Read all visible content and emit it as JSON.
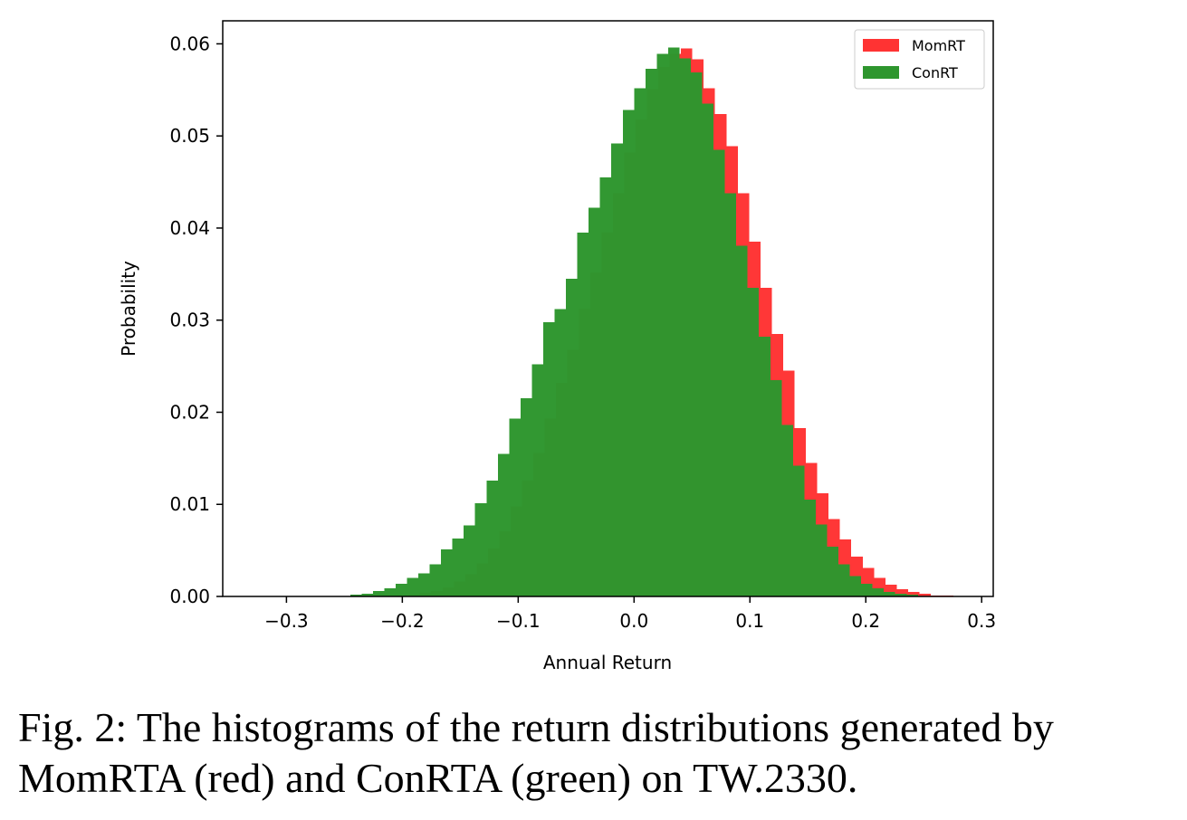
{
  "chart_data": {
    "type": "histogram",
    "title": "",
    "xlabel": "Annual Return",
    "ylabel": "Probability",
    "xlim": [
      -0.355,
      0.31
    ],
    "ylim": [
      0,
      0.0625
    ],
    "xticks": [
      -0.3,
      -0.2,
      -0.1,
      0.0,
      0.1,
      0.2,
      0.3
    ],
    "xtick_labels": [
      "−0.3",
      "−0.2",
      "−0.1",
      "0.0",
      "0.1",
      "0.2",
      "0.3"
    ],
    "yticks": [
      0.0,
      0.01,
      0.02,
      0.03,
      0.04,
      0.05,
      0.06
    ],
    "ytick_labels": [
      "0.00",
      "0.01",
      "0.02",
      "0.03",
      "0.04",
      "0.05",
      "0.06"
    ],
    "grid": false,
    "legend_position": "top-right",
    "series": [
      {
        "name": "MomRT",
        "color": "#ff3333",
        "bin_start": -0.2045,
        "bin_width": 0.0098,
        "values": [
          0.0001,
          0.0002,
          0.0004,
          0.0006,
          0.001,
          0.0016,
          0.0024,
          0.0036,
          0.0052,
          0.0071,
          0.0098,
          0.0126,
          0.0156,
          0.0193,
          0.0232,
          0.0268,
          0.0312,
          0.0352,
          0.0395,
          0.0438,
          0.0482,
          0.0518,
          0.0551,
          0.0575,
          0.0589,
          0.0595,
          0.0583,
          0.0552,
          0.0524,
          0.0489,
          0.0438,
          0.0385,
          0.0335,
          0.0285,
          0.0245,
          0.0183,
          0.0145,
          0.0112,
          0.0084,
          0.0062,
          0.0043,
          0.0031,
          0.002,
          0.0013,
          0.0008,
          0.0005,
          0.0003,
          0.0001,
          0.0001
        ]
      },
      {
        "name": "ConRT",
        "color": "#2e962e",
        "bin_start": -0.245,
        "bin_width": 0.0098,
        "values": [
          0.0002,
          0.0003,
          0.0006,
          0.0009,
          0.0014,
          0.002,
          0.0025,
          0.0035,
          0.0051,
          0.0063,
          0.0077,
          0.0101,
          0.0126,
          0.0155,
          0.0193,
          0.0215,
          0.0252,
          0.0298,
          0.0312,
          0.0345,
          0.0395,
          0.0422,
          0.0455,
          0.0492,
          0.0528,
          0.0552,
          0.0573,
          0.0589,
          0.0596,
          0.0584,
          0.0569,
          0.0535,
          0.0485,
          0.0438,
          0.0381,
          0.0335,
          0.0282,
          0.0235,
          0.0186,
          0.0142,
          0.0105,
          0.0078,
          0.0054,
          0.0035,
          0.0022,
          0.0014,
          0.0009,
          0.0005,
          0.0003,
          0.0002
        ]
      }
    ]
  },
  "caption": {
    "line1": "Fig. 2: The histograms of the return distributions generated by",
    "line2": "MomRTA (red) and ConRTA (green) on TW.2330."
  }
}
